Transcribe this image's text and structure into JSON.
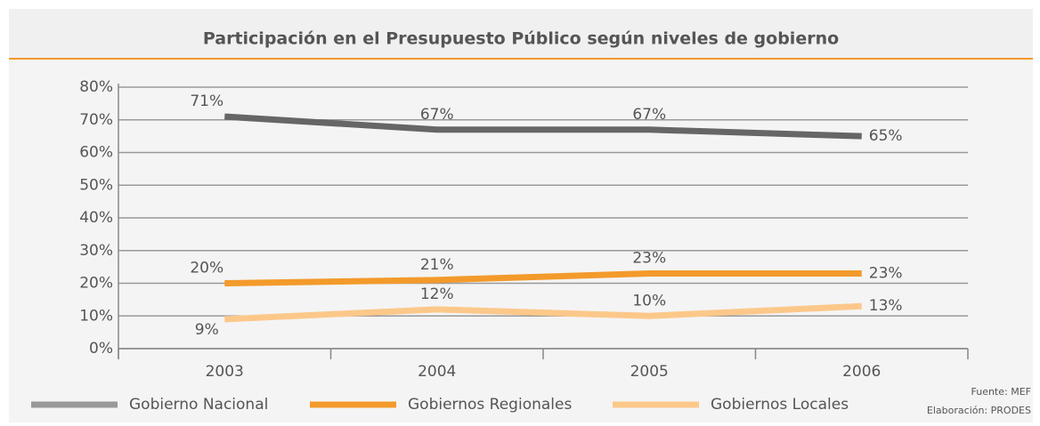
{
  "chart_data": {
    "type": "line",
    "title": "Participación en el Presupuesto Público según niveles de gobierno",
    "categories": [
      "2003",
      "2004",
      "2005",
      "2006"
    ],
    "series": [
      {
        "name": "Gobierno Nacional",
        "color": "#666666",
        "values": [
          71,
          67,
          67,
          65
        ],
        "value_labels": [
          "71%",
          "67%",
          "67%",
          "65%"
        ]
      },
      {
        "name": "Gobiernos Regionales",
        "color": "#f39a2b",
        "values": [
          20,
          21,
          23,
          23
        ],
        "value_labels": [
          "20%",
          "21%",
          "23%",
          "23%"
        ]
      },
      {
        "name": "Gobiernos Locales",
        "color": "#fcc88a",
        "values": [
          9,
          12,
          10,
          13
        ],
        "value_labels": [
          "9%",
          "12%",
          "10%",
          "13%"
        ]
      }
    ],
    "ylim": [
      0,
      80
    ],
    "yticks": [
      {
        "value": 0,
        "label": "0%"
      },
      {
        "value": 10,
        "label": "10%"
      },
      {
        "value": 20,
        "label": "20%"
      },
      {
        "value": 30,
        "label": "30%"
      },
      {
        "value": 40,
        "label": "40%"
      },
      {
        "value": 50,
        "label": "50%"
      },
      {
        "value": 60,
        "label": "60%"
      },
      {
        "value": 70,
        "label": "70%"
      },
      {
        "value": 80,
        "label": "80%"
      }
    ],
    "grid": true,
    "source": [
      "Fuente: MEF",
      "Elaboración: PRODES"
    ]
  }
}
